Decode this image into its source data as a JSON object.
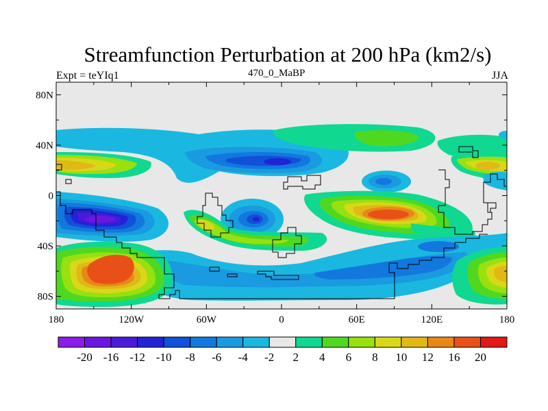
{
  "chart_data": {
    "type": "heatmap",
    "title": "Streamfunction Perturbation at 200 hPa (km2/s)",
    "subtitle_left": "Expt = teYIq1",
    "subtitle_center": "470_0_MaBP",
    "subtitle_right": "JJA",
    "x_ticks": [
      "180",
      "120W",
      "60W",
      "0",
      "60E",
      "120E",
      "180"
    ],
    "x_tick_values": [
      -180,
      -120,
      -60,
      0,
      60,
      120,
      180
    ],
    "y_ticks": [
      "80N",
      "40N",
      "0",
      "40S",
      "80S"
    ],
    "y_tick_values": [
      80,
      40,
      0,
      -40,
      -80
    ],
    "xlim": [
      -180,
      180
    ],
    "ylim": [
      -90,
      90
    ],
    "colorbar": {
      "labels": [
        "-20",
        "-16",
        "-12",
        "-10",
        "-8",
        "-6",
        "-4",
        "-2",
        "2",
        "4",
        "6",
        "8",
        "10",
        "12",
        "16",
        "20"
      ],
      "colors": [
        "#8a1ce8",
        "#6a18e0",
        "#4a1ad8",
        "#2222d6",
        "#1150d8",
        "#1278de",
        "#1a9ae0",
        "#1ab8e0",
        "#e8e8e8",
        "#10d890",
        "#50d820",
        "#98e010",
        "#d8d818",
        "#e0b818",
        "#e88818",
        "#e85018",
        "#e01818"
      ]
    },
    "features": [
      {
        "name": "high-tropical-pacific-sh",
        "lon": -130,
        "lat": -60,
        "value": 16
      },
      {
        "name": "low-eastern-pacific",
        "lon": -145,
        "lat": -20,
        "value": -16
      },
      {
        "name": "high-indian-ocean",
        "lon": 95,
        "lat": -17,
        "value": 20
      },
      {
        "name": "low-atlantic-30n",
        "lon": -5,
        "lat": 27,
        "value": -12
      },
      {
        "name": "high-north-pacific",
        "lon": -165,
        "lat": 25,
        "value": 10
      },
      {
        "name": "high-south-america",
        "lon": -55,
        "lat": -30,
        "value": 8
      },
      {
        "name": "high-east-asia",
        "lon": 162,
        "lat": 25,
        "value": 8
      },
      {
        "name": "low-south-atlantic",
        "lon": -20,
        "lat": -20,
        "value": -12
      },
      {
        "name": "low-arabia",
        "lon": 77,
        "lat": 11,
        "value": -6
      },
      {
        "name": "high-southern-indian",
        "lon": 60,
        "lat": -50,
        "value": 4
      },
      {
        "name": "high-southwest-pacific",
        "lon": 175,
        "lat": -60,
        "value": 10
      }
    ]
  }
}
